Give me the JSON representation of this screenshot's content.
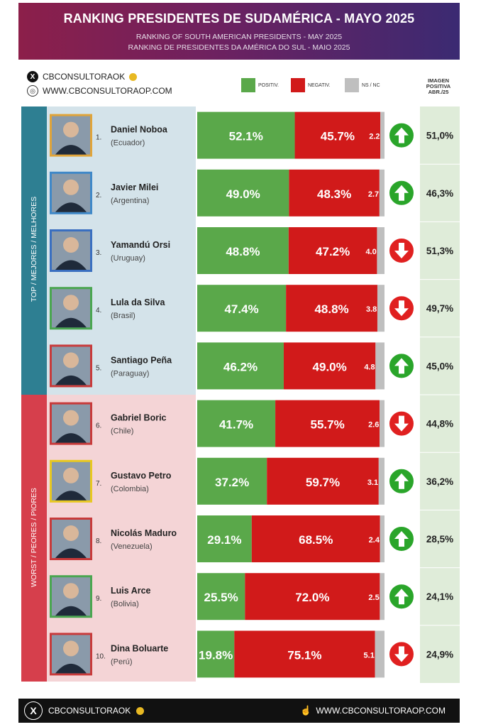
{
  "header": {
    "title": "RANKING PRESIDENTES DE SUDAMÉRICA - MAYO 2025",
    "subtitle_en": "RANKING OF SOUTH AMERICAN PRESIDENTS  -  MAY 2025",
    "subtitle_pt": "RANKING DE PRESIDENTES DA AMÉRICA DO SUL  -  MAIO 2025"
  },
  "brand": {
    "handle": "CBCONSULTORAOK",
    "website": "WWW.CBCONSULTORAOP.COM"
  },
  "legend": {
    "positive": "POSITIV.",
    "negative": "NEGATIV.",
    "nsnc": "NS / NC"
  },
  "image_column_header": "IMAGEN POSITIVA ABR./25",
  "bands": {
    "top": "TOP / MEJORES / MELHORES",
    "worst": "WORST / PEORES / PIORES"
  },
  "colors": {
    "positive": "#5aa84a",
    "negative": "#d11a1a",
    "nsnc": "#bfbfbf",
    "arrow_up": "#2aa52a",
    "arrow_down": "#e02020"
  },
  "chart_data": {
    "type": "bar",
    "orientation": "horizontal",
    "stacked": true,
    "xlim": [
      0,
      100
    ],
    "series": [
      {
        "name": "POSITIV.",
        "values": [
          52.1,
          49.0,
          48.8,
          47.4,
          46.2,
          41.7,
          37.2,
          29.1,
          25.5,
          19.8
        ]
      },
      {
        "name": "NEGATIV.",
        "values": [
          45.7,
          48.3,
          47.2,
          48.8,
          49.0,
          55.7,
          59.7,
          68.5,
          72.0,
          75.1
        ]
      },
      {
        "name": "NS / NC",
        "values": [
          2.2,
          2.7,
          4.0,
          3.8,
          4.8,
          2.6,
          3.1,
          2.4,
          2.5,
          5.1
        ]
      }
    ],
    "rows": [
      {
        "rank": "1.",
        "name": "Daniel Noboa",
        "country": "(Ecuador)",
        "pos": "52.1%",
        "neg": "45.7%",
        "nsnc": "2.2",
        "trend": "up",
        "prev": "51,0%",
        "frame": "#e0a43a"
      },
      {
        "rank": "2.",
        "name": "Javier Milei",
        "country": "(Argentina)",
        "pos": "49.0%",
        "neg": "48.3%",
        "nsnc": "2.7",
        "trend": "up",
        "prev": "46,3%",
        "frame": "#3f88c8"
      },
      {
        "rank": "3.",
        "name": "Yamandú Orsi",
        "country": "(Uruguay)",
        "pos": "48.8%",
        "neg": "47.2%",
        "nsnc": "4.0",
        "trend": "down",
        "prev": "51,3%",
        "frame": "#3a6fc0"
      },
      {
        "rank": "4.",
        "name": "Lula da Silva",
        "country": "(Brasil)",
        "pos": "47.4%",
        "neg": "48.8%",
        "nsnc": "3.8",
        "trend": "down",
        "prev": "49,7%",
        "frame": "#4aa650"
      },
      {
        "rank": "5.",
        "name": "Santiago Peña",
        "country": "(Paraguay)",
        "pos": "46.2%",
        "neg": "49.0%",
        "nsnc": "4.8",
        "trend": "up",
        "prev": "45,0%",
        "frame": "#c83a3a"
      },
      {
        "rank": "6.",
        "name": "Gabriel Boric",
        "country": "(Chile)",
        "pos": "41.7%",
        "neg": "55.7%",
        "nsnc": "2.6",
        "trend": "down",
        "prev": "44,8%",
        "frame": "#c83a3a"
      },
      {
        "rank": "7.",
        "name": "Gustavo Petro",
        "country": "(Colombia)",
        "pos": "37.2%",
        "neg": "59.7%",
        "nsnc": "3.1",
        "trend": "up",
        "prev": "36,2%",
        "frame": "#e8c820"
      },
      {
        "rank": "8.",
        "name": "Nicolás Maduro",
        "country": "(Venezuela)",
        "pos": "29.1%",
        "neg": "68.5%",
        "nsnc": "2.4",
        "trend": "up",
        "prev": "28,5%",
        "frame": "#c83a3a"
      },
      {
        "rank": "9.",
        "name": "Luis Arce",
        "country": "(Bolivia)",
        "pos": "25.5%",
        "neg": "72.0%",
        "nsnc": "2.5",
        "trend": "up",
        "prev": "24,1%",
        "frame": "#4aa650"
      },
      {
        "rank": "10.",
        "name": "Dina Boluarte",
        "country": "(Perú)",
        "pos": "19.8%",
        "neg": "75.1%",
        "nsnc": "5.1",
        "trend": "down",
        "prev": "24,9%",
        "frame": "#c83a3a"
      }
    ]
  }
}
